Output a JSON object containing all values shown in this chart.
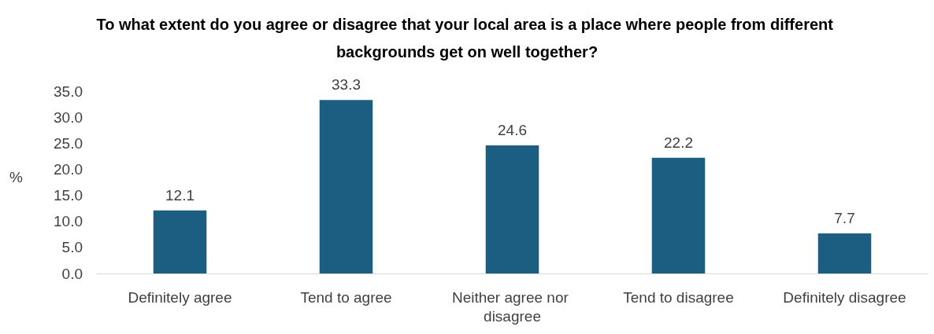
{
  "chart_data": {
    "type": "bar",
    "title": "To what extent do you agree or disagree that your local area is a place where people from different backgrounds get on well together?",
    "ylabel": "%",
    "categories": [
      "Definitely agree",
      "Tend to agree",
      "Neither agree nor disagree",
      "Tend to disagree",
      "Definitely disagree"
    ],
    "values": [
      12.1,
      33.3,
      24.6,
      22.2,
      7.7
    ],
    "color": "#1b5e82",
    "ylim": [
      0,
      35
    ],
    "yticks": [
      {
        "value": 0,
        "label": "0.0"
      },
      {
        "value": 5,
        "label": "5.0"
      },
      {
        "value": 10,
        "label": "10.0"
      },
      {
        "value": 15,
        "label": "15.0"
      },
      {
        "value": 20,
        "label": "20.0"
      },
      {
        "value": 25,
        "label": "25.0"
      },
      {
        "value": 30,
        "label": "30.0"
      },
      {
        "value": 35,
        "label": "35.0"
      }
    ],
    "data_labels": true,
    "grid": false
  }
}
